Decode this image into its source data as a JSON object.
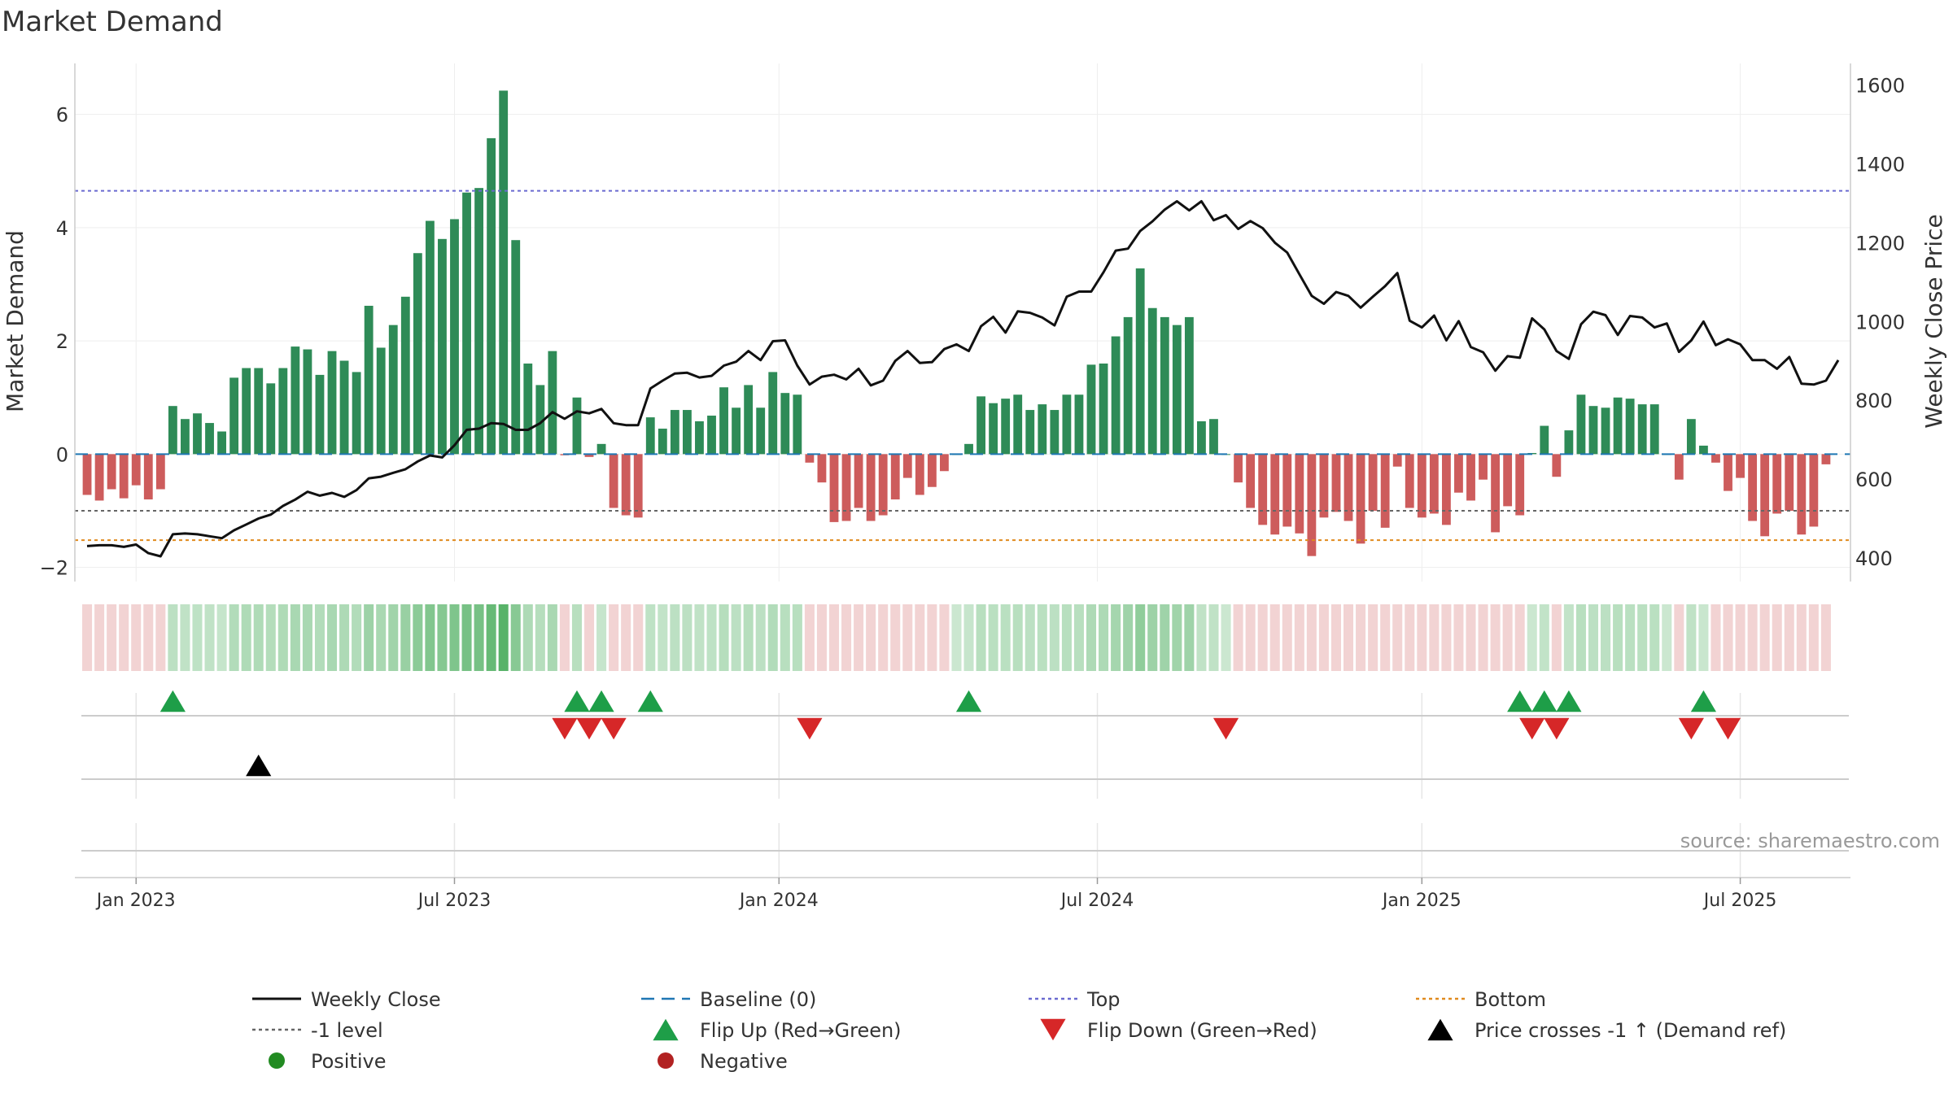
{
  "chart_data": {
    "type": "bar",
    "title": "Market Demand",
    "ylabel_left": "Market Demand",
    "ylabel_right": "Weekly Close Price",
    "ylim_left": [
      -2.25,
      6.9
    ],
    "ylim_right": [
      340,
      1655
    ],
    "yticks_left": [
      {
        "value": -2,
        "label": "−2"
      },
      {
        "value": 0,
        "label": "0"
      },
      {
        "value": 2,
        "label": "2"
      },
      {
        "value": 4,
        "label": "4"
      },
      {
        "value": 6,
        "label": "6"
      }
    ],
    "yticks_right": [
      {
        "value": 400,
        "label": "400"
      },
      {
        "value": 600,
        "label": "600"
      },
      {
        "value": 800,
        "label": "800"
      },
      {
        "value": 1000,
        "label": "1000"
      },
      {
        "value": 1200,
        "label": "1200"
      },
      {
        "value": 1400,
        "label": "1400"
      },
      {
        "value": 1600,
        "label": "1600"
      }
    ],
    "x_weeks_range": [
      -3,
      142
    ],
    "xticks": [
      {
        "week": 2,
        "label": "Jan 2023"
      },
      {
        "week": 28,
        "label": "Jul 2023"
      },
      {
        "week": 54.5,
        "label": "Jan 2024"
      },
      {
        "week": 80.5,
        "label": "Jul 2024"
      },
      {
        "week": 107,
        "label": "Jan 2025"
      },
      {
        "week": 133,
        "label": "Jul 2025"
      }
    ],
    "reference_lines": {
      "top": 4.65,
      "bottom": -1.52,
      "minus_one": -1.0,
      "baseline": 0
    },
    "series": [
      {
        "name": "Market Demand",
        "type": "bar",
        "start_week": -2,
        "values": [
          -0.72,
          -0.82,
          -0.62,
          -0.78,
          -0.55,
          -0.8,
          -0.62,
          0.85,
          0.62,
          0.72,
          0.55,
          0.4,
          1.35,
          1.52,
          1.52,
          1.25,
          1.52,
          1.9,
          1.85,
          1.4,
          1.82,
          1.65,
          1.45,
          2.62,
          1.88,
          2.28,
          2.78,
          3.55,
          4.12,
          3.8,
          4.15,
          4.62,
          4.7,
          5.58,
          6.42,
          3.78,
          1.6,
          1.22,
          1.82,
          -0.02,
          1.0,
          -0.05,
          0.18,
          -0.95,
          -1.08,
          -1.12,
          0.65,
          0.45,
          0.78,
          0.78,
          0.58,
          0.68,
          1.18,
          0.82,
          1.22,
          0.82,
          1.45,
          1.08,
          1.05,
          -0.15,
          -0.5,
          -1.2,
          -1.18,
          -0.95,
          -1.18,
          -1.08,
          -0.8,
          -0.42,
          -0.72,
          -0.58,
          -0.3,
          0.0,
          0.18,
          1.02,
          0.9,
          0.98,
          1.05,
          0.78,
          0.88,
          0.78,
          1.05,
          1.05,
          1.58,
          1.6,
          2.08,
          2.42,
          3.28,
          2.58,
          2.42,
          2.28,
          2.42,
          0.58,
          0.62,
          0.0,
          -0.5,
          -0.95,
          -1.25,
          -1.42,
          -1.28,
          -1.4,
          -1.8,
          -1.12,
          -1.02,
          -1.18,
          -1.58,
          -1.0,
          -1.3,
          -0.22,
          -0.95,
          -1.12,
          -1.05,
          -1.25,
          -0.68,
          -0.82,
          -0.45,
          -1.38,
          -0.92,
          -1.08,
          0.02,
          0.5,
          -0.4,
          0.42,
          1.05,
          0.85,
          0.82,
          1.0,
          0.98,
          0.88,
          0.88,
          0.0,
          -0.45,
          0.62,
          0.15,
          -0.15,
          -0.65,
          -0.42,
          -1.18,
          -1.45,
          -1.05,
          -1.0,
          -1.42,
          -1.28,
          -0.18
        ]
      },
      {
        "name": "Weekly Close",
        "type": "line",
        "start_week": -2,
        "values": [
          430,
          432,
          432,
          428,
          434,
          412,
          404,
          460,
          462,
          460,
          455,
          450,
          470,
          485,
          500,
          510,
          532,
          548,
          568,
          558,
          565,
          555,
          572,
          602,
          606,
          616,
          625,
          645,
          660,
          655,
          686,
          725,
          728,
          742,
          740,
          725,
          725,
          742,
          770,
          753,
          772,
          767,
          778,
          742,
          737,
          737,
          830,
          850,
          868,
          870,
          858,
          862,
          888,
          898,
          925,
          902,
          950,
          952,
          888,
          840,
          860,
          865,
          853,
          880,
          838,
          850,
          900,
          925,
          895,
          897,
          930,
          942,
          925,
          988,
          1012,
          972,
          1026,
          1022,
          1010,
          990,
          1063,
          1076,
          1076,
          1125,
          1180,
          1185,
          1230,
          1254,
          1284,
          1305,
          1282,
          1305,
          1257,
          1270,
          1235,
          1255,
          1237,
          1200,
          1175,
          1120,
          1065,
          1045,
          1075,
          1065,
          1035,
          1063,
          1090,
          1123,
          1002,
          985,
          1015,
          952,
          1001,
          935,
          922,
          875,
          912,
          908,
          1008,
          980,
          925,
          905,
          993,
          1025,
          1016,
          966,
          1014,
          1010,
          985,
          995,
          923,
          952,
          1000,
          940,
          955,
          942,
          902,
          902,
          880,
          910,
          842,
          840,
          850,
          902
        ]
      },
      {
        "name": "Flip Up (Red→Green)",
        "type": "marker",
        "weeks": [
          5,
          38,
          40,
          44,
          70,
          115,
          117,
          119,
          130
        ]
      },
      {
        "name": "Flip Down (Green→Red)",
        "type": "marker",
        "weeks": [
          37,
          39,
          41,
          57,
          91,
          116,
          118,
          129,
          132
        ]
      },
      {
        "name": "Price crosses -1 ↑ (Demand ref)",
        "type": "marker",
        "weeks": [
          12
        ]
      }
    ],
    "legend": {
      "placement": "bottom",
      "entries": [
        {
          "label": "Weekly Close",
          "symbol": "solid-line",
          "color": "#111111"
        },
        {
          "label": "Baseline (0)",
          "symbol": "dashed-line",
          "color": "#1f77b4"
        },
        {
          "label": "Top",
          "symbol": "dotted-line",
          "color": "#6a6ad0"
        },
        {
          "label": "Bottom",
          "symbol": "dotted-line",
          "color": "#e08a1e"
        },
        {
          "label": "-1 level",
          "symbol": "dotted-line",
          "color": "#666666"
        },
        {
          "label": "Flip Up (Red→Green)",
          "symbol": "triangle-up",
          "color": "#1e9e48"
        },
        {
          "label": "Flip Down (Green→Red)",
          "symbol": "triangle-down",
          "color": "#d62728"
        },
        {
          "label": "Price crosses -1 ↑ (Demand ref)",
          "symbol": "triangle-up",
          "color": "#000000"
        },
        {
          "label": "Positive",
          "symbol": "circle",
          "color": "#228b22"
        },
        {
          "label": "Negative",
          "symbol": "circle",
          "color": "#b22222"
        }
      ]
    },
    "source": "source: sharemaestro.com",
    "colors": {
      "positive_bar": "#2e8b57",
      "negative_bar": "#cd5c5c",
      "price_line": "#111111",
      "flip_up": "#1e9e48",
      "flip_down": "#d62728",
      "cross": "#000000"
    }
  }
}
